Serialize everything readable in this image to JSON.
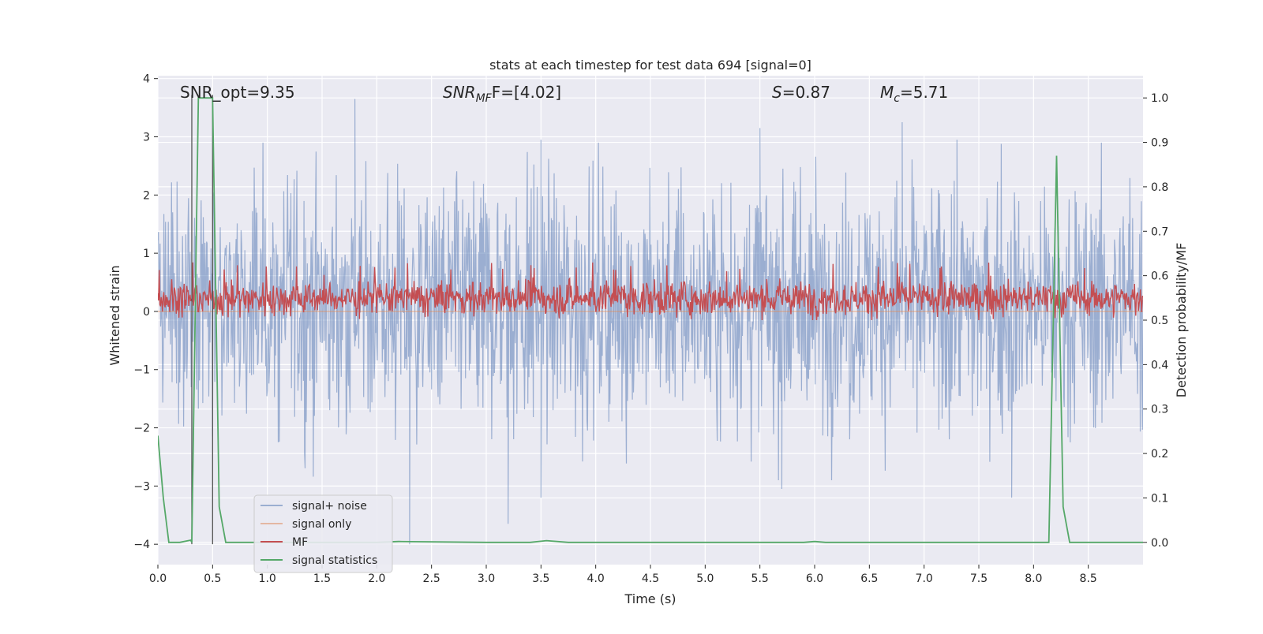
{
  "chart_data": {
    "type": "line",
    "title": "stats at each timestep for test data 694 [signal=0]",
    "xlabel": "Time (s)",
    "ylabel": "Whitened strain",
    "y2label": "Detection probability/MF",
    "xlim": [
      0.0,
      9.0
    ],
    "ylim": [
      -4.35,
      4.05
    ],
    "y2lim": [
      -0.05,
      1.05
    ],
    "xticks": [
      "0.0",
      "0.5",
      "1.0",
      "1.5",
      "2.0",
      "2.5",
      "3.0",
      "3.5",
      "4.0",
      "4.5",
      "5.0",
      "5.5",
      "6.0",
      "6.5",
      "7.0",
      "7.5",
      "8.0",
      "8.5"
    ],
    "yticks": [
      "4",
      "3",
      "2",
      "1",
      "0",
      "−1",
      "−2",
      "−3",
      "−4"
    ],
    "y2ticks": [
      "1.0",
      "0.9",
      "0.8",
      "0.7",
      "0.6",
      "0.5",
      "0.4",
      "0.3",
      "0.2",
      "0.1",
      "0.0"
    ],
    "grid": true,
    "annotations": {
      "snr_opt": "SNR_opt=9.35",
      "snr_mf_main": "SNR",
      "snr_mf_sub": "MF",
      "snr_mf_value": "F=[4.02]",
      "s_main": "S",
      "s_value": "=0.87",
      "mc_main": "M",
      "mc_sub": "c",
      "mc_value": "=5.71"
    },
    "vlines": [
      0.31,
      0.5
    ],
    "series": [
      {
        "name": "signal+ noise",
        "color": "#4c72b0",
        "description": "whitened strain noise, roughly uniform amplitude in [-2.5, 3.0] with occasional spikes",
        "notable_peaks": [
          [
            1.8,
            3.65
          ],
          [
            3.5,
            2.95
          ],
          [
            5.5,
            3.15
          ],
          [
            6.8,
            3.25
          ],
          [
            7.3,
            2.95
          ]
        ],
        "notable_troughs": [
          [
            2.3,
            -4.0
          ],
          [
            3.2,
            -3.65
          ],
          [
            3.5,
            -3.2
          ],
          [
            5.7,
            -3.05
          ],
          [
            7.8,
            -3.2
          ]
        ]
      },
      {
        "name": "signal only",
        "color": "#dd8452",
        "constant": 0.0
      },
      {
        "name": "MF",
        "color": "#c44e52",
        "axis": "right",
        "range": [
          0.5,
          0.61
        ]
      },
      {
        "name": "signal statistics",
        "color": "#55a868",
        "axis": "right",
        "x": [
          0.0,
          0.05,
          0.1,
          0.2,
          0.3,
          0.31,
          0.37,
          0.4,
          0.5,
          0.56,
          0.62,
          0.7,
          1.0,
          2.0,
          2.2,
          3.0,
          3.4,
          3.55,
          3.75,
          4.0,
          5.0,
          5.9,
          6.0,
          6.1,
          7.0,
          8.0,
          8.14,
          8.21,
          8.27,
          8.33,
          8.5,
          9.0
        ],
        "y": [
          0.24,
          0.1,
          0.0,
          0.0,
          0.005,
          0.0,
          1.0,
          1.0,
          1.0,
          0.08,
          0.0,
          0.0,
          0.0,
          0.0,
          0.002,
          0.0,
          0.0,
          0.004,
          0.0,
          0.0,
          0.0,
          0.0,
          0.002,
          0.0,
          0.0,
          0.0,
          0.0,
          0.87,
          0.08,
          0.0,
          0.0,
          0.0
        ]
      }
    ],
    "legend": {
      "position": "lower-left",
      "entries": [
        "signal+ noise",
        "signal only",
        "MF",
        "signal statistics"
      ]
    }
  }
}
